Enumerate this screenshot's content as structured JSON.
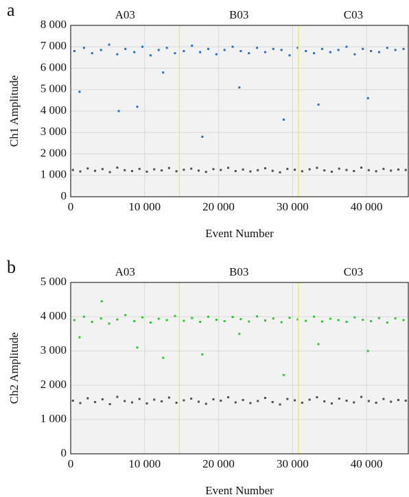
{
  "chart_data": [
    {
      "type": "scatter",
      "panel_label": "a",
      "xlabel": "Event Number",
      "ylabel": "Ch1 Amplitude",
      "xlim": [
        0,
        45650
      ],
      "ylim": [
        0,
        8000
      ],
      "grid": true,
      "xticks": [
        0,
        {
          "value": 10000,
          "label": "10 000"
        },
        {
          "value": 20000,
          "label": "20 000"
        },
        {
          "value": 30000,
          "label": "30 000"
        },
        {
          "value": 40000,
          "label": "40 000"
        }
      ],
      "yticks": [
        0,
        {
          "value": 1000,
          "label": "1 000"
        },
        {
          "value": 2000,
          "label": "2 000"
        },
        {
          "value": 3000,
          "label": "3 000"
        },
        {
          "value": 4000,
          "label": "4 000"
        },
        {
          "value": 5000,
          "label": "5 000"
        },
        {
          "value": 6000,
          "label": "6 000"
        },
        {
          "value": 7000,
          "label": "7 000"
        },
        {
          "value": 8000,
          "label": "8 000"
        }
      ],
      "wells": [
        "A03",
        "B03",
        "C03"
      ],
      "dividers": [
        14700,
        30800
      ],
      "divider_color": "#f2e84a",
      "series": [
        {
          "color": "#1f6fd0",
          "x": [
            500,
            1800,
            2900,
            4100,
            5200,
            6300,
            7400,
            8600,
            9700,
            10800,
            11900,
            13000,
            14100,
            15300,
            16400,
            17500,
            18600,
            19700,
            20800,
            21900,
            23000,
            24100,
            25200,
            26300,
            27400,
            28500,
            29600,
            30700,
            31800,
            32900,
            34000,
            35100,
            36200,
            37300,
            38400,
            39500,
            40600,
            41700,
            42800,
            43900,
            45000,
            1200,
            6500,
            9000,
            12500,
            17800,
            22800,
            28800,
            33500,
            40200
          ],
          "y": [
            6800,
            6950,
            6700,
            6850,
            7100,
            6650,
            6900,
            6750,
            7000,
            6600,
            6850,
            6950,
            6700,
            6800,
            7050,
            6750,
            6900,
            6650,
            6850,
            7000,
            6800,
            6700,
            6950,
            6750,
            6900,
            6850,
            6600,
            6950,
            6800,
            6700,
            6900,
            6750,
            6850,
            7000,
            6650,
            6900,
            6800,
            6750,
            6950,
            6850,
            6900,
            4900,
            4000,
            4200,
            5800,
            2800,
            5100,
            3600,
            4300,
            4600
          ]
        },
        {
          "color": "#4d4d4d",
          "x": [
            300,
            1300,
            2300,
            3300,
            4300,
            5300,
            6300,
            7300,
            8300,
            9300,
            10300,
            11300,
            12300,
            13300,
            14300,
            15300,
            16300,
            17300,
            18300,
            19300,
            20300,
            21300,
            22300,
            23300,
            24300,
            25300,
            26300,
            27300,
            28300,
            29300,
            30300,
            31300,
            32300,
            33300,
            34300,
            35300,
            36300,
            37300,
            38300,
            39300,
            40300,
            41300,
            42300,
            43300,
            44300,
            45300
          ],
          "y": [
            1250,
            1180,
            1320,
            1210,
            1290,
            1150,
            1360,
            1240,
            1200,
            1300,
            1170,
            1280,
            1230,
            1340,
            1190,
            1260,
            1310,
            1220,
            1160,
            1290,
            1250,
            1350,
            1200,
            1270,
            1180,
            1240,
            1330,
            1210,
            1140,
            1300,
            1260,
            1190,
            1280,
            1350,
            1230,
            1170,
            1310,
            1250,
            1200,
            1360,
            1240,
            1190,
            1300,
            1220,
            1270,
            1250
          ]
        }
      ]
    },
    {
      "type": "scatter",
      "panel_label": "b",
      "xlabel": "Event Number",
      "ylabel": "Ch2 Amplitude",
      "xlim": [
        0,
        45650
      ],
      "ylim": [
        0,
        5000
      ],
      "grid": true,
      "xticks": [
        0,
        {
          "value": 10000,
          "label": "10 000"
        },
        {
          "value": 20000,
          "label": "20 000"
        },
        {
          "value": 30000,
          "label": "30 000"
        },
        {
          "value": 40000,
          "label": "40 000"
        }
      ],
      "yticks": [
        0,
        {
          "value": 1000,
          "label": "1 000"
        },
        {
          "value": 2000,
          "label": "2 000"
        },
        {
          "value": 3000,
          "label": "3 000"
        },
        {
          "value": 4000,
          "label": "4 000"
        },
        {
          "value": 5000,
          "label": "5 000"
        }
      ],
      "wells": [
        "A03",
        "B03",
        "C03"
      ],
      "dividers": [
        14700,
        30800
      ],
      "divider_color": "#f2e84a",
      "series": [
        {
          "color": "#22cc22",
          "x": [
            500,
            1800,
            2900,
            4100,
            5200,
            6300,
            7400,
            8600,
            9700,
            10800,
            11900,
            13000,
            14100,
            15300,
            16400,
            17500,
            18600,
            19700,
            20800,
            21900,
            23000,
            24100,
            25200,
            26300,
            27400,
            28500,
            29600,
            30700,
            31800,
            32900,
            34000,
            35100,
            36200,
            37300,
            38400,
            39500,
            40600,
            41700,
            42800,
            43900,
            45000,
            1200,
            4200,
            9000,
            12500,
            17800,
            22800,
            28800,
            33500,
            40200
          ],
          "y": [
            3900,
            4000,
            3850,
            3950,
            3800,
            3920,
            4050,
            3870,
            3980,
            3830,
            3940,
            3900,
            4020,
            3880,
            3960,
            3850,
            4000,
            3910,
            3870,
            3990,
            3930,
            3860,
            4010,
            3890,
            3950,
            3840,
            3970,
            3920,
            3880,
            4000,
            3860,
            3940,
            3900,
            3850,
            3980,
            3910,
            3870,
            3960,
            3830,
            3950,
            3900,
            3400,
            4450,
            3100,
            2800,
            2900,
            3500,
            2300,
            3200,
            3000
          ]
        },
        {
          "color": "#4d4d4d",
          "x": [
            300,
            1300,
            2300,
            3300,
            4300,
            5300,
            6300,
            7300,
            8300,
            9300,
            10300,
            11300,
            12300,
            13300,
            14300,
            15300,
            16300,
            17300,
            18300,
            19300,
            20300,
            21300,
            22300,
            23300,
            24300,
            25300,
            26300,
            27300,
            28300,
            29300,
            30300,
            31300,
            32300,
            33300,
            34300,
            35300,
            36300,
            37300,
            38300,
            39300,
            40300,
            41300,
            42300,
            43300,
            44300,
            45300
          ],
          "y": [
            1550,
            1480,
            1620,
            1510,
            1590,
            1450,
            1660,
            1540,
            1500,
            1600,
            1470,
            1580,
            1530,
            1640,
            1490,
            1560,
            1610,
            1520,
            1460,
            1590,
            1550,
            1650,
            1500,
            1570,
            1480,
            1540,
            1630,
            1510,
            1440,
            1600,
            1560,
            1490,
            1580,
            1650,
            1530,
            1470,
            1610,
            1550,
            1500,
            1660,
            1540,
            1490,
            1600,
            1520,
            1570,
            1550
          ]
        }
      ]
    }
  ]
}
